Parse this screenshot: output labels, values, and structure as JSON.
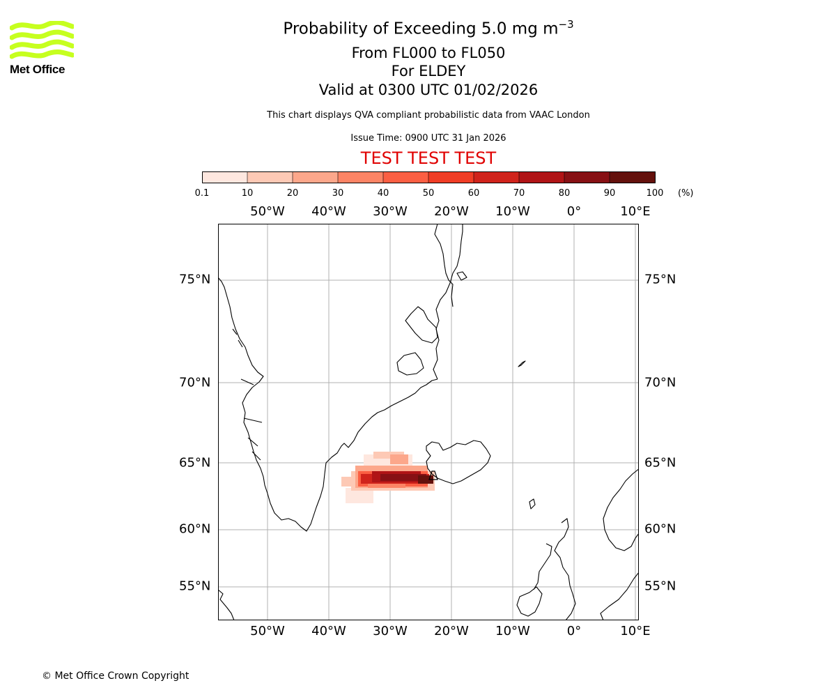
{
  "header": {
    "logo_text": "Met Office",
    "title": "Probability of Exceeding 5.0 mg m",
    "title_sup": "−3",
    "level_range": "From FL000 to FL050",
    "volcano": "For ELDEY",
    "valid_time": "Valid at 0300 UTC 01/02/2026",
    "note": "This chart displays QVA compliant probabilistic data from VAAC London",
    "issue_time": "Issue Time: 0900 UTC 31 Jan 2026",
    "test_banner": "TEST TEST TEST"
  },
  "colors": {
    "brand_green": "#c6ff1f",
    "test_red": "#e00000",
    "colorbar": [
      "#fee7df",
      "#fdc9b5",
      "#fca78b",
      "#fc8465",
      "#fb5f43",
      "#f03d25",
      "#d0231b",
      "#b01416",
      "#871014",
      "#64110c"
    ]
  },
  "colorbar": {
    "ticks": [
      "0.1",
      "10",
      "20",
      "30",
      "40",
      "50",
      "60",
      "70",
      "80",
      "90",
      "100"
    ],
    "unit": "(%)"
  },
  "map": {
    "lon_labels": [
      "50°W",
      "40°W",
      "30°W",
      "20°W",
      "10°W",
      "0°",
      "10°E"
    ],
    "lat_labels": [
      "75°N",
      "70°N",
      "65°N",
      "60°N",
      "55°N"
    ]
  },
  "footer": {
    "copyright": "© Met Office Crown Copyright"
  }
}
